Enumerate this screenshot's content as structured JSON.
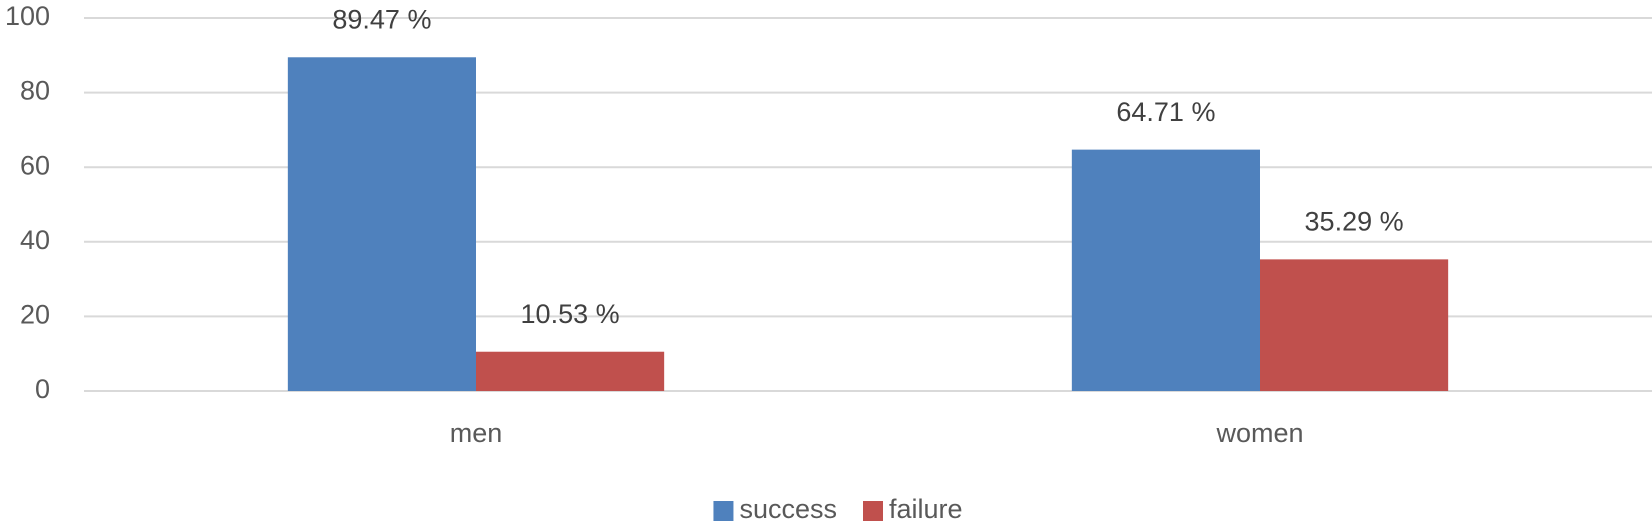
{
  "chart_data": {
    "type": "bar",
    "categories": [
      "men",
      "women"
    ],
    "series": [
      {
        "name": "success",
        "color": "#4f81bd",
        "values": [
          89.47,
          64.71
        ],
        "value_labels": [
          "89.47 %",
          "64.71 %"
        ]
      },
      {
        "name": "failure",
        "color": "#c0504d",
        "values": [
          10.53,
          35.29
        ],
        "value_labels": [
          "10.53 %",
          "35.29 %"
        ]
      }
    ],
    "ylim": [
      0,
      100
    ],
    "yticks": [
      0,
      20,
      40,
      60,
      80,
      100
    ],
    "grid": true,
    "legend": "bottom"
  }
}
